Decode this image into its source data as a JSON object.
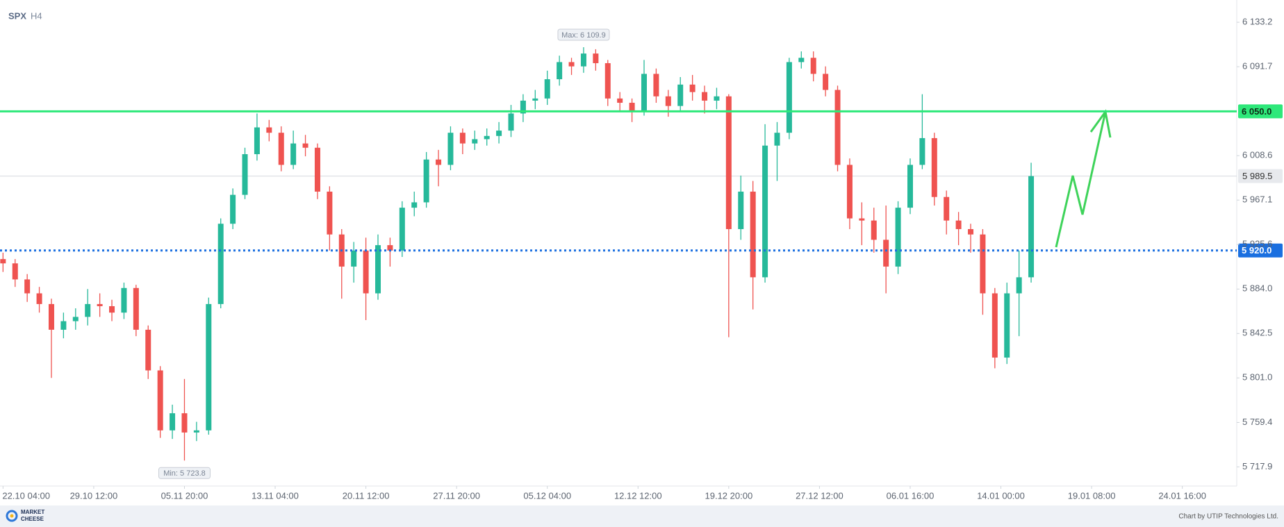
{
  "chart_data": {
    "type": "candlestick",
    "symbol": "SPX",
    "timeframe": "H4",
    "up_color": "#26b99a",
    "down_color": "#ef5350",
    "xlim": [
      -1,
      408
    ],
    "xticks": [
      {
        "value": 0,
        "label": "22.10 04:00"
      },
      {
        "value": 30,
        "label": "29.10 12:00"
      },
      {
        "value": 60,
        "label": "05.11 20:00"
      },
      {
        "value": 90,
        "label": "13.11 04:00"
      },
      {
        "value": 120,
        "label": "20.11 12:00"
      },
      {
        "value": 150,
        "label": "27.11 20:00"
      },
      {
        "value": 180,
        "label": "05.12 04:00"
      },
      {
        "value": 210,
        "label": "12.12 12:00"
      },
      {
        "value": 240,
        "label": "19.12 20:00"
      },
      {
        "value": 270,
        "label": "27.12 12:00"
      },
      {
        "value": 300,
        "label": "06.01 16:00"
      },
      {
        "value": 330,
        "label": "14.01 00:00"
      },
      {
        "value": 360,
        "label": "19.01 08:00"
      },
      {
        "value": 390,
        "label": "24.01 16:00"
      }
    ],
    "ylim": [
      5700,
      6154
    ],
    "yticks": [
      {
        "value": 6133.2,
        "label": "6 133.2"
      },
      {
        "value": 6091.7,
        "label": "6 091.7"
      },
      {
        "value": 6008.6,
        "label": "6 008.6"
      },
      {
        "value": 5967.1,
        "label": "5 967.1"
      },
      {
        "value": 5925.6,
        "label": "5 925.6"
      },
      {
        "value": 5884.0,
        "label": "5 884.0"
      },
      {
        "value": 5842.5,
        "label": "5 842.5"
      },
      {
        "value": 5801.0,
        "label": "5 801.0"
      },
      {
        "value": 5759.4,
        "label": "5 759.4"
      },
      {
        "value": 5717.9,
        "label": "5 717.9"
      }
    ],
    "x": [
      0,
      4,
      8,
      12,
      16,
      20,
      24,
      28,
      32,
      36,
      40,
      44,
      48,
      52,
      56,
      60,
      64,
      68,
      72,
      76,
      80,
      84,
      88,
      92,
      96,
      100,
      104,
      108,
      112,
      116,
      120,
      124,
      128,
      132,
      136,
      140,
      144,
      148,
      152,
      156,
      160,
      164,
      168,
      172,
      176,
      180,
      184,
      188,
      192,
      196,
      200,
      204,
      208,
      212,
      216,
      220,
      224,
      228,
      232,
      236,
      240,
      244,
      248,
      252,
      256,
      260,
      264,
      268,
      272,
      276,
      280,
      284,
      288,
      292,
      296,
      300,
      304,
      308,
      312,
      316,
      320,
      324,
      328,
      332,
      336,
      340
    ],
    "open": [
      5912,
      5908,
      5893,
      5880,
      5870,
      5846,
      5854,
      5858,
      5870,
      5868,
      5862,
      5885,
      5846,
      5808,
      5752,
      5768,
      5750,
      5752,
      5870,
      5945,
      5972,
      6010,
      6035,
      6030,
      6000,
      6020,
      6016,
      5975,
      5935,
      5905,
      5920,
      5880,
      5925,
      5920,
      5960,
      5965,
      6005,
      6000,
      6030,
      6020,
      6024,
      6027,
      6032,
      6048,
      6060,
      6062,
      6080,
      6096,
      6092,
      6104,
      6095,
      6062,
      6058,
      6050,
      6085,
      6064,
      6055,
      6075,
      6068,
      6060,
      6064,
      5940,
      5975,
      5895,
      6018,
      6030,
      6096,
      6100,
      6085,
      6070,
      6000,
      5950,
      5948,
      5930,
      5905,
      5960,
      6000,
      6025,
      5970,
      5948,
      5940,
      5935,
      5880,
      5820,
      5880,
      5895
    ],
    "high": [
      5918,
      5912,
      5898,
      5886,
      5875,
      5862,
      5866,
      5884,
      5880,
      5874,
      5890,
      5888,
      5850,
      5812,
      5776,
      5800,
      5760,
      5876,
      5950,
      5978,
      6016,
      6048,
      6042,
      6036,
      6032,
      6028,
      6020,
      5980,
      5940,
      5928,
      5932,
      5935,
      5932,
      5966,
      5975,
      6012,
      6014,
      6036,
      6034,
      6032,
      6034,
      6040,
      6056,
      6066,
      6070,
      6088,
      6102,
      6100,
      6109.9,
      6108,
      6098,
      6068,
      6062,
      6098,
      6090,
      6070,
      6082,
      6084,
      6074,
      6072,
      6066,
      5990,
      5985,
      6038,
      6040,
      6100,
      6106,
      6106,
      6092,
      6074,
      6006,
      5965,
      5960,
      5962,
      5966,
      6006,
      6066,
      6030,
      5976,
      5956,
      5945,
      5940,
      5885,
      5890,
      5920,
      6002
    ],
    "low": [
      5900,
      5886,
      5872,
      5862,
      5801,
      5838,
      5846,
      5850,
      5858,
      5854,
      5856,
      5840,
      5800,
      5745,
      5744,
      5723.8,
      5742,
      5748,
      5866,
      5940,
      5968,
      6004,
      6022,
      5994,
      5996,
      6008,
      5968,
      5920,
      5875,
      5890,
      5855,
      5874,
      5905,
      5914,
      5952,
      5960,
      5980,
      5995,
      6010,
      6014,
      6018,
      6020,
      6026,
      6040,
      6052,
      6056,
      6074,
      6084,
      6086,
      6088,
      6055,
      6050,
      6040,
      6046,
      6058,
      6045,
      6050,
      6060,
      6048,
      6052,
      5839,
      5930,
      5865,
      5890,
      5985,
      6024,
      6090,
      6078,
      6064,
      5994,
      5940,
      5925,
      5918,
      5880,
      5898,
      5954,
      5996,
      5962,
      5935,
      5925,
      5918,
      5860,
      5810,
      5814,
      5840,
      5890
    ],
    "close": [
      5908,
      5893,
      5880,
      5870,
      5846,
      5854,
      5858,
      5870,
      5868,
      5862,
      5885,
      5846,
      5808,
      5752,
      5768,
      5750,
      5752,
      5870,
      5945,
      5972,
      6010,
      6035,
      6030,
      6000,
      6020,
      6016,
      5975,
      5935,
      5905,
      5920,
      5880,
      5925,
      5920,
      5960,
      5965,
      6005,
      6000,
      6030,
      6020,
      6024,
      6027,
      6032,
      6048,
      6060,
      6062,
      6080,
      6096,
      6092,
      6104,
      6095,
      6062,
      6058,
      6050,
      6085,
      6064,
      6055,
      6075,
      6068,
      6060,
      6064,
      5940,
      5975,
      5895,
      6018,
      6030,
      6096,
      6100,
      6085,
      6070,
      6000,
      5950,
      5948,
      5930,
      5905,
      5960,
      6000,
      6025,
      5970,
      5948,
      5940,
      5935,
      5880,
      5820,
      5880,
      5895,
      5989.5
    ],
    "levels": [
      {
        "value": 6050.0,
        "label": "6 050.0",
        "color": "#2ee87a",
        "text_color": "#0d2a17",
        "style": "solid"
      },
      {
        "value": 5920.0,
        "label": "5 920.0",
        "color": "#1a6fe0",
        "text_color": "#ffffff",
        "style": "dotted"
      }
    ],
    "last_price": {
      "value": 5989.5,
      "label": "5 989.5",
      "color": "#d5d8de"
    },
    "annotations": [
      {
        "label": "Max: 6 109.9",
        "value": 6109.9,
        "x": 192,
        "position": "above"
      },
      {
        "label": "Min: 5 723.8",
        "value": 5723.8,
        "x": 60,
        "position": "below"
      }
    ]
  },
  "footer": {
    "logo_top": "MARKET",
    "logo_bottom": "CHEESE",
    "credit": "Chart by UTIP Technologies Ltd."
  }
}
